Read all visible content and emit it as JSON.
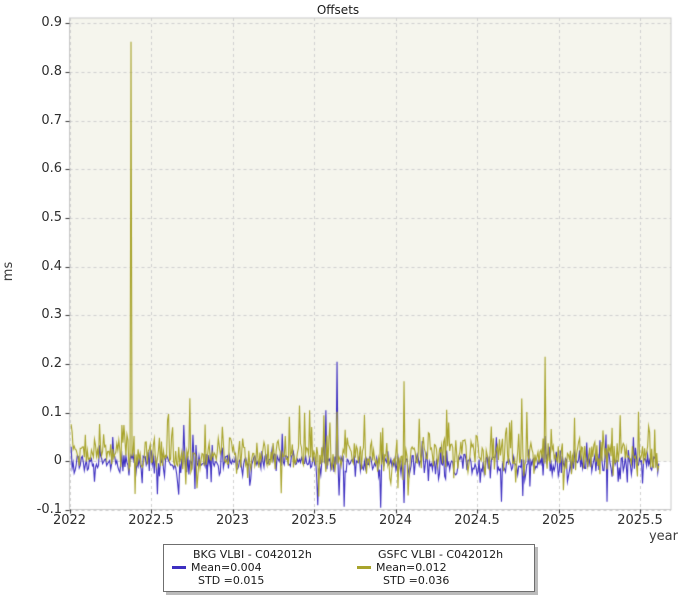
{
  "chart_data": {
    "type": "line",
    "title": "Offsets",
    "xlabel": "year",
    "ylabel": "ms",
    "xlim": [
      2022,
      2025.69
    ],
    "ylim": [
      -0.0986,
      0.911
    ],
    "xticks": [
      2022,
      2022.5,
      2023,
      2023.5,
      2024,
      2024.5,
      2025,
      2025.5
    ],
    "yticks": [
      -0.1,
      0,
      0.1,
      0.2,
      0.3,
      0.4,
      0.5,
      0.6,
      0.7,
      0.8,
      0.9
    ],
    "grid": {
      "on": true,
      "style": "dashed",
      "dash": [
        3,
        3
      ],
      "color": "#d0d0d0"
    },
    "frame_color": "#c9c9c9",
    "tick_color": "#333333",
    "background": {
      "figure": "#ffffff",
      "axes_above_zero": "#f5f5ed",
      "axes_below_zero": "#ffffff",
      "shading_boundary": 0
    },
    "legend_position": "bottom-center-outside",
    "series": [
      {
        "name": "BKG VLBI - C042012h",
        "color": "#3d2fc1",
        "mean": 0.004,
        "std": 0.015,
        "legend_mean_label": "Mean=0.004",
        "legend_std_label": "STD =0.015",
        "sim": {
          "seed": 7,
          "n": 580,
          "x_start": 2022.01,
          "x_end": 2025.615,
          "mean": -0.003,
          "std": 0.012,
          "up_prob": 0.06,
          "up_scale": 0.025,
          "down_prob": 0.12,
          "down_scale": 0.028
        },
        "spikes": [
          [
            2022.67,
            -0.068
          ],
          [
            2022.7,
            0.075
          ],
          [
            2022.76,
            0.055
          ],
          [
            2023.52,
            -0.09
          ],
          [
            2023.575,
            0.105
          ],
          [
            2023.64,
            0.205
          ],
          [
            2023.655,
            -0.07
          ],
          [
            2023.685,
            -0.093
          ],
          [
            2023.91,
            -0.095
          ],
          [
            2024.05,
            -0.085
          ],
          [
            2024.62,
            0.05
          ],
          [
            2025.46,
            0.05
          ]
        ]
      },
      {
        "name": "GSFC VLBI - C042012h",
        "color": "#a8a42c",
        "mean": 0.012,
        "std": 0.036,
        "legend_mean_label": "Mean=0.012",
        "legend_std_label": "STD =0.036",
        "sim": {
          "seed": 13,
          "n": 580,
          "x_start": 2022.01,
          "x_end": 2025.615,
          "mean": 0.012,
          "std": 0.018,
          "up_prob": 0.2,
          "up_scale": 0.032,
          "down_prob": 0.06,
          "down_scale": 0.03
        },
        "spikes": [
          [
            2022.335,
            0.075
          ],
          [
            2022.375,
            0.862
          ],
          [
            2022.6,
            0.085
          ],
          [
            2022.74,
            0.13
          ],
          [
            2022.78,
            -0.055
          ],
          [
            2023.3,
            -0.065
          ],
          [
            2023.35,
            0.092
          ],
          [
            2023.41,
            0.115
          ],
          [
            2023.445,
            0.1
          ],
          [
            2023.475,
            0.105
          ],
          [
            2023.53,
            -0.072
          ],
          [
            2023.56,
            0.095
          ],
          [
            2023.6,
            0.08
          ],
          [
            2023.91,
            0.06
          ],
          [
            2024.05,
            0.165
          ],
          [
            2024.075,
            -0.07
          ],
          [
            2024.7,
            0.08
          ],
          [
            2024.92,
            0.215
          ],
          [
            2025.1,
            0.09
          ],
          [
            2025.38,
            0.095
          ],
          [
            2025.55,
            0.072
          ]
        ]
      }
    ]
  }
}
